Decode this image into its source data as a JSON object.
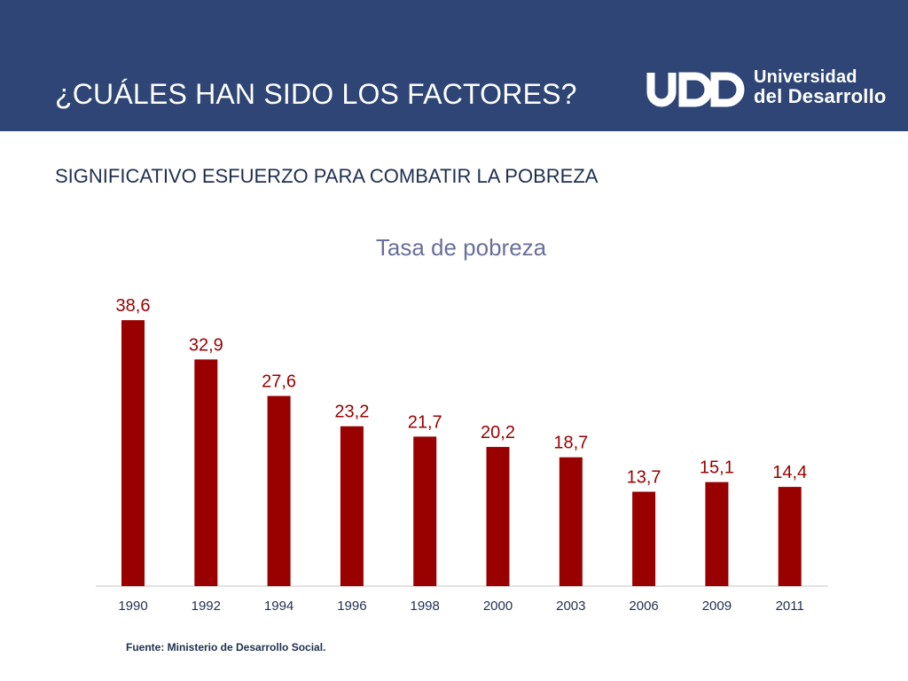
{
  "header": {
    "title": "¿CUÁLES HAN SIDO LOS FACTORES?",
    "logo_line1": "Universidad",
    "logo_line2": "del Desarrollo",
    "logo_mark": "UDD"
  },
  "subtitle": "SIGNIFICATIVO ESFUERZO PARA COMBATIR LA POBREZA",
  "source": "Fuente: Ministerio de Desarrollo Social.",
  "colors": {
    "header_bg": "#2e4575",
    "bar": "#990000",
    "label": "#990000",
    "title": "#6a6f9a",
    "axis_text": "#1f2f4f"
  },
  "chart_data": {
    "type": "bar",
    "title": "Tasa de pobreza",
    "xlabel": "",
    "ylabel": "",
    "categories": [
      "1990",
      "1992",
      "1994",
      "1996",
      "1998",
      "2000",
      "2003",
      "2006",
      "2009",
      "2011"
    ],
    "values": [
      38.6,
      32.9,
      27.6,
      23.2,
      21.7,
      20.2,
      18.7,
      13.7,
      15.1,
      14.4
    ],
    "value_labels": [
      "38,6",
      "32,9",
      "27,6",
      "23,2",
      "21,7",
      "20,2",
      "18,7",
      "13,7",
      "15,1",
      "14,4"
    ],
    "ylim": [
      0,
      40
    ],
    "grid": false,
    "legend": "none"
  }
}
